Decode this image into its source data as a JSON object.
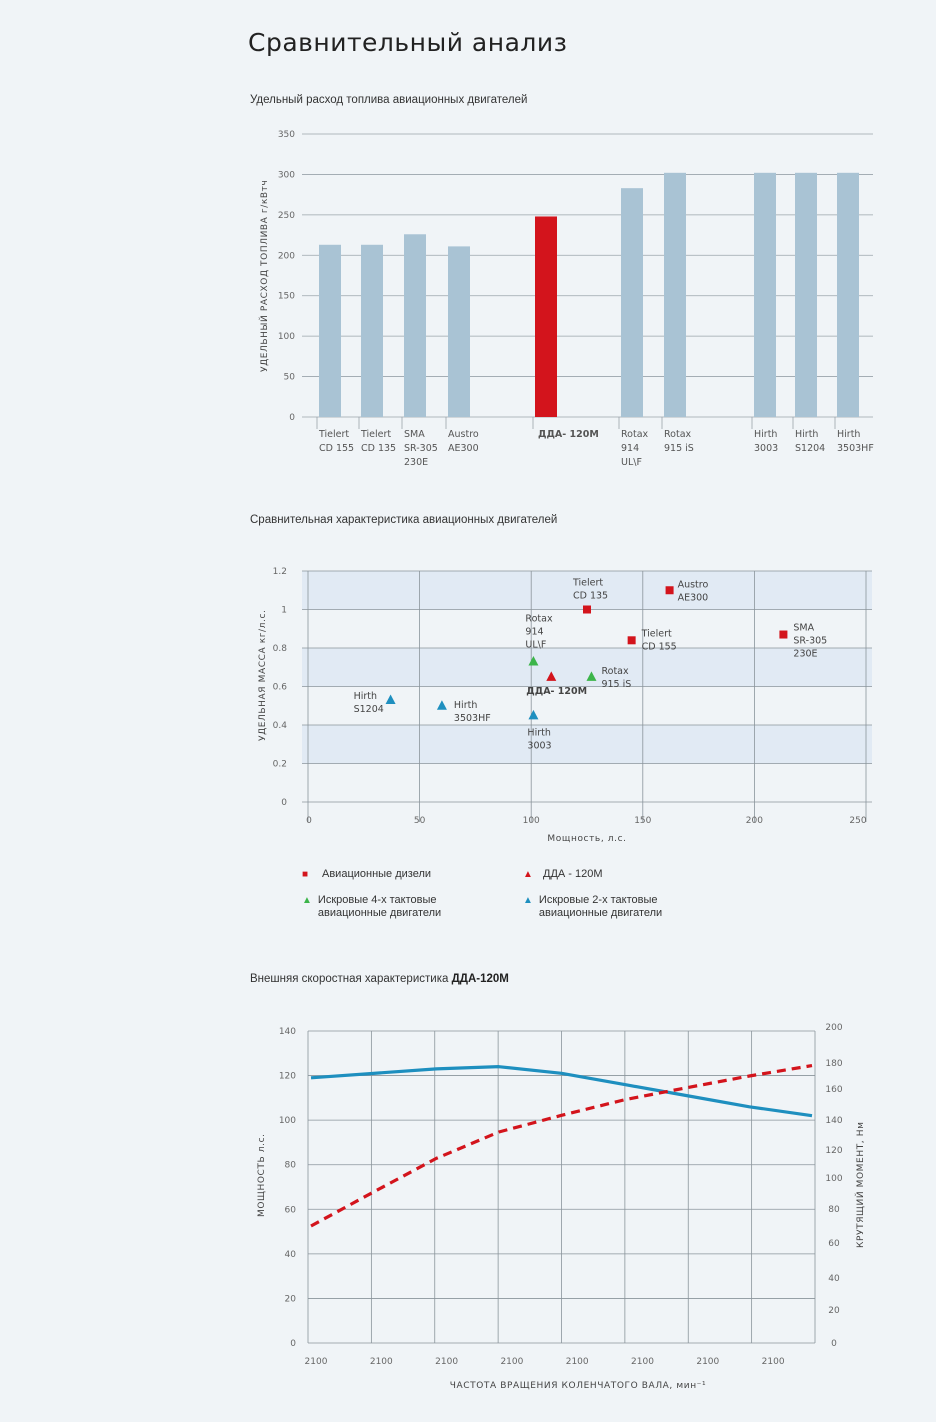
{
  "page": {
    "title": "Сравнительный анализ",
    "section1_title": "Удельный расход топлива авиационных двигателей",
    "section2_title": "Сравнительная характеристика авиационных двигателей",
    "section3_title_prefix": "Внешняя скоростная характеристика ",
    "section3_title_bold": "ДДА-120М"
  },
  "colors": {
    "bar": "#a9c3d4",
    "highlight": "#d3141c",
    "diesel": "#d3141c",
    "dda": "#d3141c",
    "four_stroke": "#3cb54a",
    "two_stroke": "#1e8fbf",
    "power_line": "#1e8fbf",
    "torque_line": "#d3141c"
  },
  "chart_data": [
    {
      "type": "bar",
      "ylabel": "УДЕЛЬНЫЙ РАСХОД ТОПЛИВА   г/кВтч",
      "ylim": [
        0,
        350
      ],
      "yticks": [
        "0",
        "50",
        "100",
        "150",
        "200",
        "250",
        "300",
        "350"
      ],
      "categories": [
        [
          "Tielert",
          "CD 155"
        ],
        [
          "Tielert",
          "CD 135"
        ],
        [
          "SMA",
          "SR-305",
          "230E"
        ],
        [
          "Austro",
          "AE300"
        ],
        [
          "ДДА- 120М"
        ],
        [
          "Rotax",
          "914",
          "UL\\F"
        ],
        [
          "Rotax",
          "915 iS"
        ],
        [
          "Hirth",
          "3003"
        ],
        [
          "Hirth",
          "S1204"
        ],
        [
          "Hirth",
          "3503HF"
        ]
      ],
      "values": [
        213,
        213,
        226,
        211,
        248,
        283,
        302,
        302,
        302,
        302
      ],
      "highlight_index": 4,
      "grid": true
    },
    {
      "type": "scatter",
      "xlabel": "Мощность,  л.с.",
      "ylabel": "УДЕЛЬНАЯ МАССА   кг/л.с.",
      "xlim": [
        0,
        250
      ],
      "ylim": [
        0,
        1.2
      ],
      "xticks": [
        "0",
        "50",
        "100",
        "150",
        "200",
        "250"
      ],
      "yticks": [
        "0",
        "0.2",
        "0.4",
        "0.6",
        "0.8",
        "1",
        "1.2"
      ],
      "points": [
        {
          "group": "diesel",
          "label": [
            "Tielert",
            "CD 135"
          ],
          "x": 125,
          "y": 1.0
        },
        {
          "group": "diesel",
          "label": [
            "Austro",
            "AE300"
          ],
          "x": 162,
          "y": 1.1
        },
        {
          "group": "diesel",
          "label": [
            "Tielert",
            "CD 155"
          ],
          "x": 145,
          "y": 0.84
        },
        {
          "group": "diesel",
          "label": [
            "SMA",
            "SR-305",
            "230E"
          ],
          "x": 213,
          "y": 0.87
        },
        {
          "group": "four_stroke",
          "label": [
            "Rotax",
            "914",
            "UL\\F"
          ],
          "x": 101,
          "y": 0.73
        },
        {
          "group": "dda",
          "label": [
            "ДДА- 120М"
          ],
          "x": 109,
          "y": 0.65
        },
        {
          "group": "four_stroke",
          "label": [
            "Rotax",
            "915 iS"
          ],
          "x": 127,
          "y": 0.65
        },
        {
          "group": "two_stroke",
          "label": [
            "Hirth",
            "3003"
          ],
          "x": 101,
          "y": 0.45
        },
        {
          "group": "two_stroke",
          "label": [
            "Hirth",
            "S1204"
          ],
          "x": 37,
          "y": 0.53
        },
        {
          "group": "two_stroke",
          "label": [
            "Hirth",
            "3503HF"
          ],
          "x": 60,
          "y": 0.5
        }
      ],
      "legend": [
        {
          "group": "diesel",
          "marker": "■",
          "text": "Авиационные дизели"
        },
        {
          "group": "dda",
          "marker": "▲",
          "text": "ДДА - 120М"
        },
        {
          "group": "four_stroke",
          "marker": "▲",
          "text": "Искровые 4-х тактовые авиационные двигатели"
        },
        {
          "group": "two_stroke",
          "marker": "▲",
          "text": "Искровые 2-х тактовые авиационные двигатели"
        }
      ],
      "grid": true
    },
    {
      "type": "line",
      "xlabel": "ЧАСТОТА ВРАЩЕНИЯ КОЛЕНЧАТОГО ВАЛА, мин⁻¹",
      "ylabel_left": "МОЩНОСТЬ л.с.",
      "ylabel_right": "КРУТЯЩИЙ МОМЕНТ, Нм",
      "x_tick_labels": [
        "2100",
        "2100",
        "2100",
        "2100",
        "2100",
        "2100",
        "2100",
        "2100"
      ],
      "ylim_left": [
        0,
        140
      ],
      "yticks_left": [
        "0",
        "20",
        "40",
        "60",
        "80",
        "100",
        "120",
        "140"
      ],
      "yticks_right": [
        "0",
        "20",
        "40",
        "60",
        "80",
        "100",
        "120",
        "140",
        "160",
        "180",
        "200"
      ],
      "series": [
        {
          "key": "power",
          "style": "solid",
          "axis": "left",
          "values": [
            119,
            121,
            123,
            124,
            121,
            116,
            111,
            106,
            102
          ]
        },
        {
          "key": "torque",
          "style": "dashed",
          "axis": "right",
          "values": [
            70,
            91,
            114,
            132,
            143,
            153,
            161,
            170,
            178
          ]
        }
      ],
      "grid": true
    }
  ]
}
